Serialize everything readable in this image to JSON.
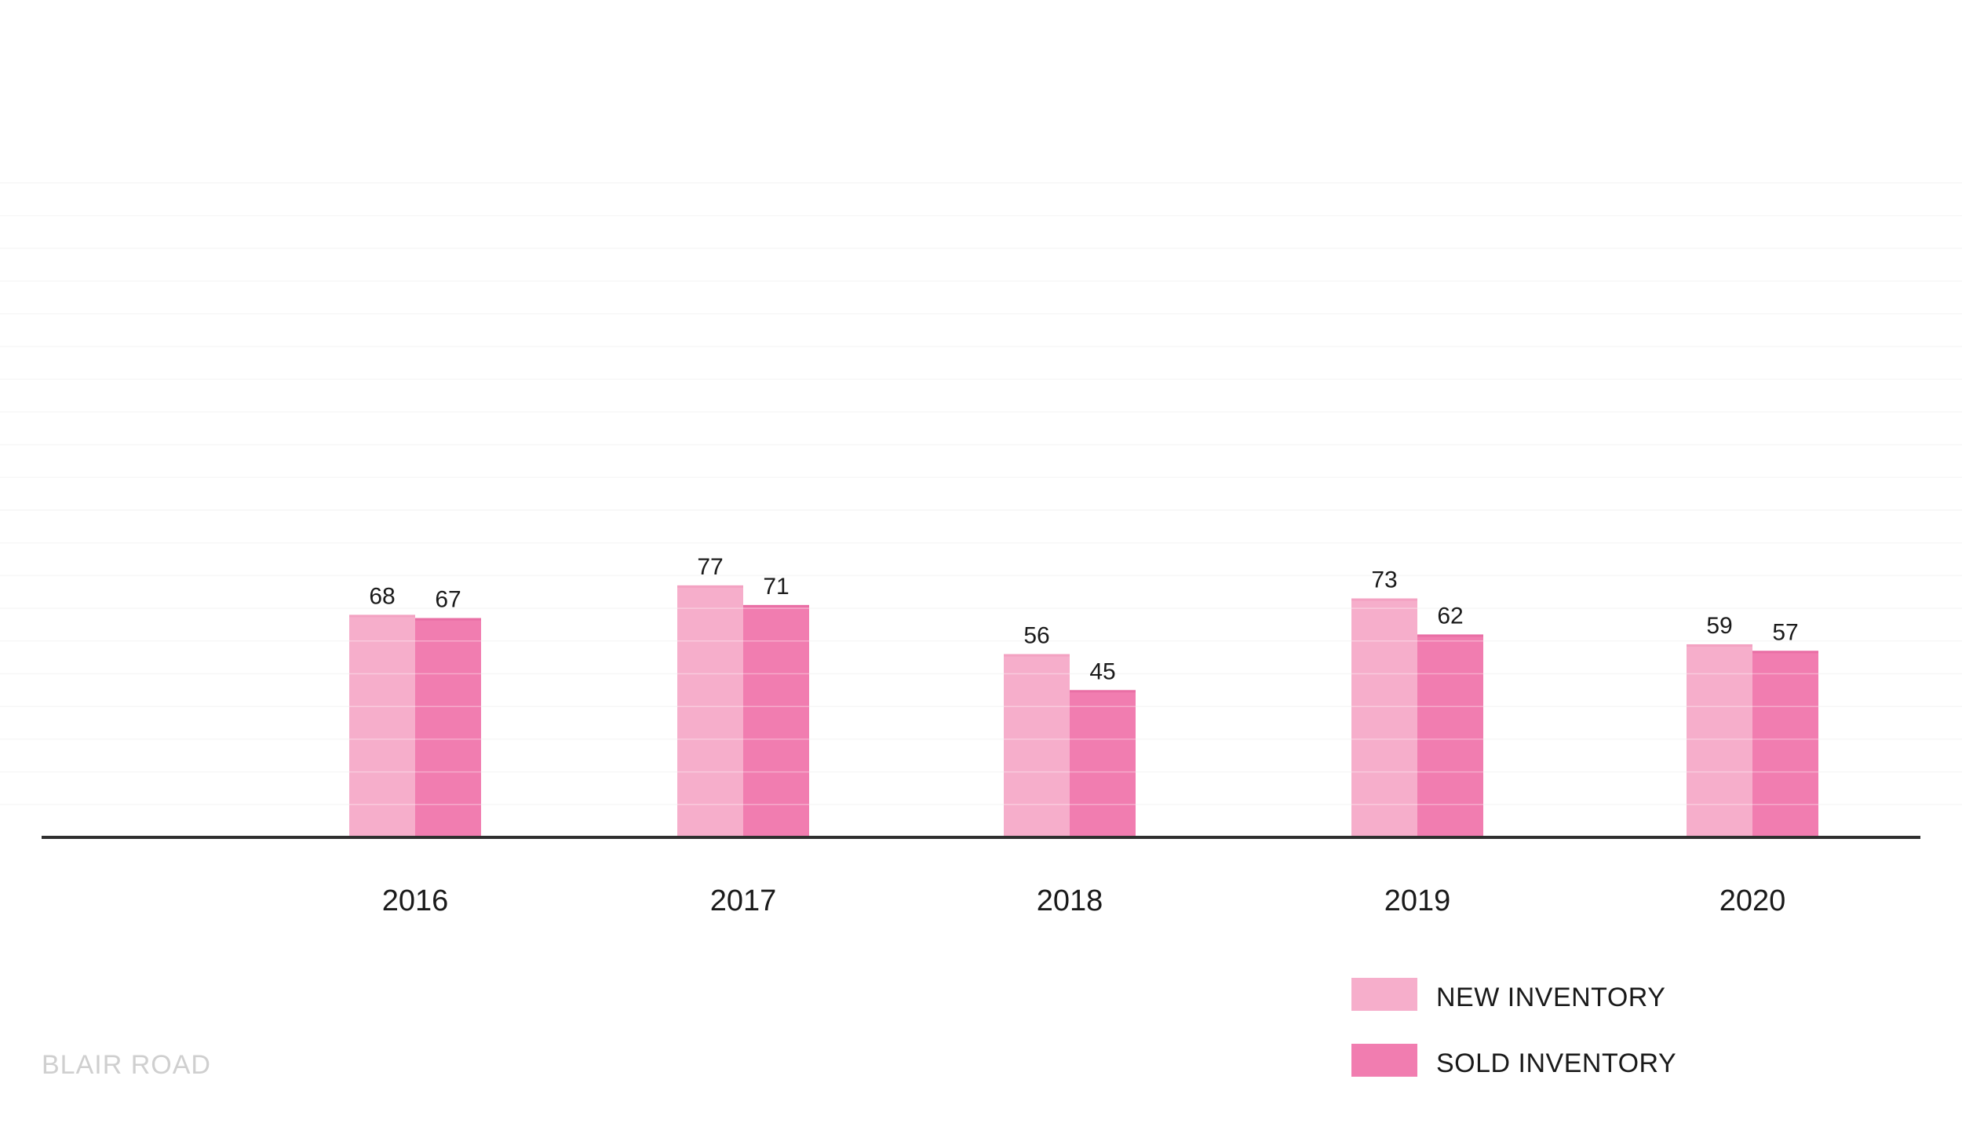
{
  "chart_data": {
    "type": "bar",
    "categories": [
      "2016",
      "2017",
      "2018",
      "2019",
      "2020"
    ],
    "series": [
      {
        "name": "NEW INVENTORY",
        "values": [
          68,
          77,
          56,
          73,
          59
        ],
        "color": "#f6aecb"
      },
      {
        "name": "SOLD INVENTORY",
        "values": [
          67,
          71,
          45,
          62,
          57
        ],
        "color": "#f17db0"
      }
    ],
    "ylim": [
      0,
      200
    ],
    "grid": true,
    "legend_position": "bottom-right",
    "axis_color": "#2f2f2f",
    "gridline_color": "#f3f3f3",
    "title": "",
    "xlabel": "",
    "ylabel": ""
  },
  "watermark": "BLAIR ROAD"
}
